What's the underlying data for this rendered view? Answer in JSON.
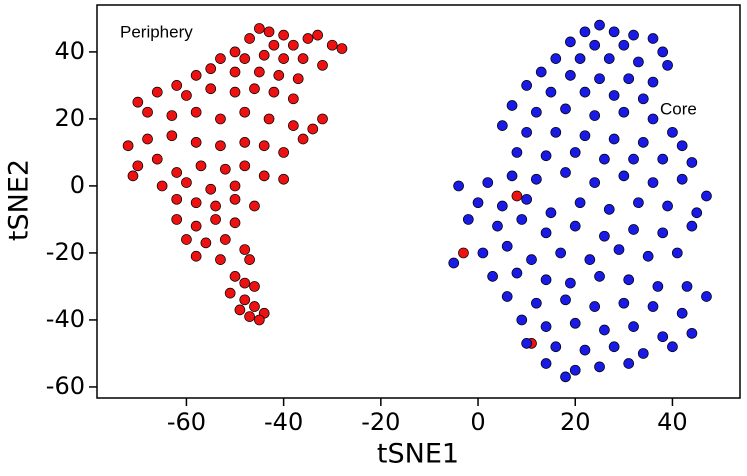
{
  "chart_data": {
    "type": "scatter",
    "xlabel": "tSNE1",
    "ylabel": "tSNE2",
    "xlim": [
      -78.4,
      53.9
    ],
    "ylim": [
      -63.3,
      54
    ],
    "xticks": [
      -60,
      -40,
      -20,
      0,
      20,
      40
    ],
    "yticks": [
      -60,
      -40,
      -20,
      0,
      20,
      40
    ],
    "series": [
      {
        "name": "Periphery",
        "color": "#ee1111",
        "x": [
          -45,
          -43,
          -40,
          -47,
          -42,
          -38,
          -35,
          -33,
          -30,
          -28,
          -50,
          -53,
          -48,
          -44,
          -40,
          -36,
          -32,
          -55,
          -58,
          -50,
          -45,
          -41,
          -37,
          -62,
          -66,
          -70,
          -60,
          -55,
          -50,
          -46,
          -42,
          -38,
          -68,
          -63,
          -58,
          -53,
          -48,
          -43,
          -38,
          -34,
          -32,
          -72,
          -68,
          -63,
          -58,
          -53,
          -48,
          -44,
          -40,
          -36,
          -70,
          -66,
          -62,
          -57,
          -52,
          -48,
          -44,
          -40,
          -71,
          -65,
          -60,
          -55,
          -50,
          -62,
          -58,
          -54,
          -50,
          -46,
          -62,
          -58,
          -54,
          -50,
          -60,
          -56,
          -52,
          -48,
          -58,
          -53,
          -47,
          -50,
          -48,
          -46,
          -51,
          -48,
          -46,
          -44,
          -47,
          -45,
          -49,
          -3,
          8,
          11
        ],
        "values": [
          47,
          46,
          45,
          44,
          42,
          42,
          44,
          45,
          42,
          41,
          40,
          38,
          38,
          39,
          38,
          38,
          36,
          35,
          33,
          34,
          34,
          33,
          32,
          30,
          28,
          25,
          27,
          29,
          28,
          29,
          28,
          26,
          22,
          21,
          22,
          20,
          22,
          20,
          18,
          17,
          20,
          12,
          14,
          15,
          13,
          12,
          13,
          12,
          10,
          14,
          6,
          8,
          4,
          6,
          5,
          6,
          3,
          2,
          3,
          0,
          1,
          -1,
          0,
          -4,
          -5,
          -6,
          -4,
          -6,
          -10,
          -12,
          -10,
          -11,
          -16,
          -17,
          -16,
          -19,
          -21,
          -22,
          -22,
          -27,
          -29,
          -30,
          -32,
          -34,
          -36,
          -38,
          -39,
          -40,
          -37,
          -20,
          -3,
          -47
        ]
      },
      {
        "name": "Core",
        "color": "#1a1ae6",
        "x": [
          25,
          22,
          28,
          32,
          36,
          19,
          24,
          30,
          38,
          16,
          21,
          27,
          33,
          39,
          13,
          19,
          25,
          31,
          36,
          10,
          15,
          22,
          28,
          34,
          7,
          12,
          18,
          24,
          30,
          36,
          40,
          5,
          10,
          16,
          22,
          28,
          34,
          42,
          8,
          14,
          20,
          26,
          32,
          38,
          44,
          -4,
          2,
          7,
          12,
          18,
          24,
          30,
          36,
          42,
          47,
          0,
          5,
          10,
          15,
          21,
          27,
          33,
          39,
          45,
          -2,
          4,
          9,
          14,
          20,
          26,
          32,
          38,
          44,
          -5,
          1,
          6,
          11,
          17,
          23,
          29,
          35,
          41,
          3,
          8,
          14,
          19,
          25,
          31,
          37,
          43,
          47,
          6,
          12,
          18,
          24,
          30,
          36,
          42,
          9,
          14,
          20,
          26,
          32,
          38,
          44,
          10,
          16,
          22,
          28,
          34,
          40,
          14,
          20,
          25,
          31,
          18
        ],
        "values": [
          48,
          46,
          46,
          45,
          44,
          43,
          42,
          42,
          40,
          38,
          38,
          38,
          37,
          36,
          34,
          33,
          32,
          32,
          31,
          30,
          28,
          28,
          27,
          26,
          24,
          22,
          23,
          21,
          22,
          20,
          16,
          18,
          16,
          16,
          15,
          14,
          13,
          12,
          10,
          9,
          10,
          8,
          8,
          8,
          7,
          0,
          1,
          3,
          2,
          4,
          1,
          3,
          1,
          2,
          -3,
          -5,
          -6,
          -4,
          -8,
          -5,
          -7,
          -5,
          -6,
          -8,
          -10,
          -12,
          -10,
          -14,
          -12,
          -15,
          -13,
          -14,
          -12,
          -23,
          -20,
          -18,
          -22,
          -20,
          -22,
          -19,
          -21,
          -20,
          -27,
          -26,
          -28,
          -29,
          -27,
          -28,
          -30,
          -30,
          -33,
          -33,
          -35,
          -34,
          -36,
          -35,
          -36,
          -38,
          -40,
          -42,
          -41,
          -43,
          -42,
          -45,
          -44,
          -47,
          -48,
          -49,
          -48,
          -50,
          -48,
          -53,
          -55,
          -54,
          -53,
          -57
        ]
      }
    ]
  }
}
